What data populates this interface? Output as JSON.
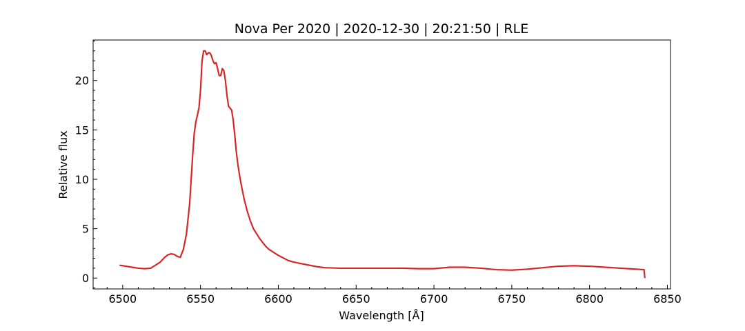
{
  "chart_data": {
    "type": "line",
    "title": "Nova Per 2020 | 2020-12-30 | 20:21:50 | RLE",
    "xlabel": "Wavelength [Å]",
    "ylabel": "Relative flux",
    "xlim": [
      6481,
      6852
    ],
    "ylim": [
      -1.1,
      24.1
    ],
    "xticks": [
      6500,
      6550,
      6600,
      6650,
      6700,
      6750,
      6800,
      6850
    ],
    "yticks": [
      0,
      5,
      10,
      15,
      20
    ],
    "xminor_step": 10,
    "yminor_step": 1,
    "grid": false,
    "series": [
      {
        "color": "#d62728",
        "x": [
          6498,
          6502,
          6506,
          6510,
          6514,
          6518,
          6521,
          6524,
          6527,
          6529,
          6531,
          6533,
          6535,
          6537,
          6539,
          6541,
          6543,
          6545,
          6546,
          6547,
          6548,
          6549,
          6550,
          6551,
          6552,
          6553,
          6554,
          6555,
          6556,
          6557,
          6558,
          6559,
          6560,
          6561,
          6562,
          6563,
          6564,
          6565,
          6566,
          6567,
          6568,
          6569,
          6570,
          6571,
          6572,
          6573,
          6574,
          6575,
          6576,
          6577,
          6578,
          6579,
          6580,
          6582,
          6584,
          6586,
          6588,
          6590,
          6592,
          6594,
          6596,
          6598,
          6600,
          6603,
          6606,
          6609,
          6612,
          6615,
          6620,
          6625,
          6630,
          6640,
          6650,
          6660,
          6670,
          6680,
          6690,
          6700,
          6710,
          6720,
          6730,
          6740,
          6750,
          6760,
          6770,
          6780,
          6790,
          6800,
          6810,
          6820,
          6830,
          6835,
          6835.5
        ],
        "y": [
          1.3,
          1.2,
          1.1,
          1.0,
          0.95,
          1.0,
          1.3,
          1.6,
          2.1,
          2.35,
          2.45,
          2.4,
          2.2,
          2.1,
          2.9,
          4.5,
          7.5,
          12.5,
          14.7,
          15.8,
          16.5,
          17.2,
          19.0,
          22.0,
          23.0,
          23.0,
          22.6,
          22.8,
          22.8,
          22.5,
          22.0,
          21.7,
          21.8,
          21.2,
          20.5,
          20.5,
          21.2,
          21.0,
          20.0,
          18.5,
          17.4,
          17.2,
          17.0,
          16.0,
          14.5,
          12.8,
          11.5,
          10.5,
          9.6,
          8.8,
          8.0,
          7.4,
          6.8,
          5.8,
          5.0,
          4.5,
          4.0,
          3.6,
          3.2,
          2.9,
          2.7,
          2.5,
          2.3,
          2.05,
          1.8,
          1.65,
          1.55,
          1.45,
          1.3,
          1.15,
          1.05,
          1.0,
          1.0,
          1.0,
          1.0,
          1.0,
          0.95,
          0.95,
          1.1,
          1.1,
          1.0,
          0.85,
          0.8,
          0.9,
          1.05,
          1.2,
          1.25,
          1.2,
          1.1,
          1.0,
          0.9,
          0.85,
          0.0
        ]
      }
    ]
  }
}
